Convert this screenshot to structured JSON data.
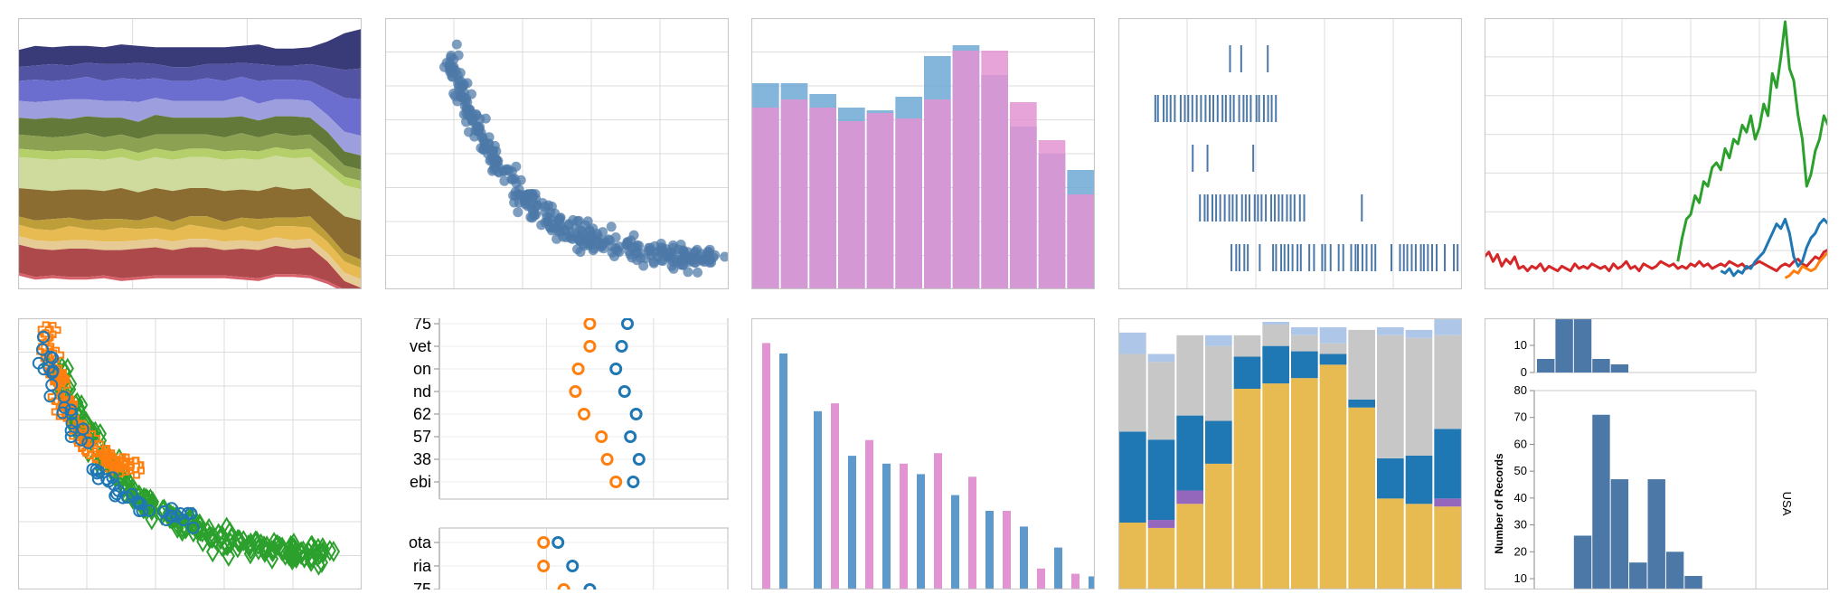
{
  "chart_data": [
    {
      "id": "streamgraph",
      "type": "area",
      "stacked": "center",
      "grid": true,
      "x": [
        0,
        1,
        2,
        3,
        4,
        5,
        6,
        7,
        8,
        9,
        10,
        11,
        12,
        13,
        14,
        15,
        16,
        17,
        18,
        19,
        20
      ],
      "series": [
        {
          "color": "#393b79",
          "values": [
            6,
            7,
            6,
            7,
            6,
            6,
            7,
            6,
            6,
            7,
            7,
            6,
            6,
            6,
            7,
            6,
            6,
            6,
            9,
            13,
            14
          ]
        },
        {
          "color": "#5254a3",
          "values": [
            5,
            5,
            6,
            5,
            5,
            6,
            5,
            6,
            5,
            5,
            5,
            5,
            6,
            5,
            6,
            5,
            5,
            6,
            8,
            10,
            11
          ]
        },
        {
          "color": "#6b6ecf",
          "values": [
            7,
            8,
            7,
            7,
            8,
            7,
            8,
            8,
            7,
            7,
            7,
            8,
            7,
            7,
            8,
            7,
            7,
            7,
            9,
            12,
            13
          ]
        },
        {
          "color": "#9c9ede",
          "values": [
            6,
            6,
            6,
            7,
            6,
            6,
            6,
            7,
            6,
            6,
            6,
            6,
            6,
            7,
            6,
            6,
            6,
            6,
            6,
            7,
            7
          ]
        },
        {
          "color": "#637939",
          "values": [
            6,
            6,
            7,
            6,
            6,
            7,
            6,
            6,
            7,
            6,
            6,
            6,
            7,
            6,
            6,
            6,
            7,
            6,
            6,
            5,
            5
          ]
        },
        {
          "color": "#8ca252",
          "values": [
            5,
            5,
            5,
            5,
            6,
            5,
            5,
            5,
            5,
            6,
            5,
            5,
            5,
            6,
            5,
            5,
            5,
            5,
            5,
            4,
            4
          ]
        },
        {
          "color": "#b5cf6b",
          "values": [
            3,
            3,
            3,
            3,
            3,
            3,
            3,
            3,
            3,
            3,
            3,
            3,
            3,
            3,
            3,
            3,
            3,
            3,
            3,
            3,
            3
          ]
        },
        {
          "color": "#cedb9c",
          "values": [
            11,
            11,
            11,
            11,
            11,
            11,
            11,
            11,
            11,
            11,
            11,
            11,
            11,
            11,
            11,
            11,
            11,
            11,
            11,
            11,
            11
          ]
        },
        {
          "color": "#8c6d31",
          "values": [
            10,
            11,
            10,
            10,
            11,
            10,
            11,
            10,
            10,
            11,
            10,
            10,
            11,
            10,
            10,
            11,
            10,
            10,
            11,
            13,
            14
          ]
        },
        {
          "color": "#bd9e39",
          "values": [
            3,
            3,
            4,
            3,
            3,
            4,
            3,
            3,
            4,
            3,
            3,
            4,
            3,
            3,
            4,
            3,
            3,
            4,
            3,
            3,
            3
          ]
        },
        {
          "color": "#e7ba52",
          "values": [
            4,
            4,
            4,
            5,
            4,
            4,
            5,
            4,
            4,
            4,
            5,
            4,
            4,
            5,
            4,
            4,
            5,
            4,
            4,
            4,
            4
          ]
        },
        {
          "color": "#e7cb94",
          "values": [
            3,
            3,
            3,
            3,
            3,
            3,
            3,
            3,
            3,
            3,
            3,
            3,
            3,
            3,
            3,
            3,
            3,
            3,
            3,
            3,
            3
          ]
        },
        {
          "color": "#ad494a",
          "values": [
            10,
            10,
            9,
            10,
            10,
            9,
            10,
            10,
            10,
            9,
            10,
            10,
            9,
            10,
            10,
            10,
            9,
            10,
            7,
            3,
            2
          ]
        },
        {
          "color": "#d6616b",
          "values": [
            1,
            1,
            1,
            1,
            1,
            1,
            1,
            1,
            1,
            1,
            1,
            1,
            1,
            1,
            1,
            1,
            1,
            1,
            1,
            1,
            1
          ]
        }
      ]
    },
    {
      "id": "scatter-single",
      "type": "scatter",
      "grid": true,
      "xlim": [
        0,
        100
      ],
      "ylim": [
        0,
        100
      ],
      "color": "#4c78a8"
    },
    {
      "id": "overlaid-histogram",
      "type": "bar",
      "grid": true,
      "ylim": [
        0,
        100
      ],
      "series": [
        {
          "color": "#6fa8d4",
          "values": [
            76,
            76,
            72,
            67,
            66,
            71,
            86,
            90,
            79,
            60,
            50,
            44
          ]
        },
        {
          "color": "#e294d2",
          "values": [
            67,
            70,
            67,
            62,
            65,
            63,
            70,
            88,
            88,
            69,
            55,
            35
          ]
        }
      ]
    },
    {
      "id": "strip-plot",
      "type": "scatter",
      "grid": true,
      "rows": 5,
      "color": "#4c78a8",
      "xlim": [
        0,
        100
      ]
    },
    {
      "id": "multi-line",
      "type": "line",
      "grid": true,
      "ylim": [
        0,
        100
      ],
      "series": [
        {
          "color": "#2ca02c",
          "values": [
            null,
            null,
            null,
            null,
            null,
            null,
            null,
            null,
            null,
            null,
            null,
            null,
            null,
            null,
            null,
            null,
            null,
            null,
            null,
            null,
            null,
            null,
            null,
            null,
            null,
            null,
            null,
            null,
            null,
            null,
            null,
            null,
            null,
            null,
            null,
            null,
            null,
            null,
            null,
            null,
            null,
            null,
            null,
            null,
            null,
            8,
            18,
            26,
            28,
            36,
            33,
            42,
            40,
            48,
            50,
            47,
            56,
            52,
            60,
            58,
            66,
            63,
            70,
            60,
            65,
            75,
            70,
            88,
            82,
            95,
            110,
            90,
            85,
            70,
            60,
            40,
            45,
            55,
            60,
            70,
            66
          ]
        },
        {
          "color": "#d62728",
          "values": [
            10,
            12,
            8,
            11,
            6,
            9,
            7,
            10,
            5,
            6,
            4,
            6,
            5,
            7,
            4,
            6,
            5,
            4,
            6,
            5,
            4,
            7,
            5,
            6,
            5,
            7,
            6,
            5,
            6,
            4,
            7,
            5,
            6,
            8,
            5,
            6,
            4,
            7,
            6,
            5,
            6,
            8,
            7,
            6,
            7,
            5,
            6,
            5,
            7,
            6,
            8,
            6,
            7,
            5,
            6,
            7,
            6,
            8,
            7,
            6,
            7,
            5,
            6,
            7,
            8,
            7,
            6,
            5,
            4,
            6,
            7,
            6,
            8,
            9,
            7,
            6,
            8,
            10,
            9,
            12,
            13
          ]
        },
        {
          "color": "#1f77b4",
          "values": [
            null,
            null,
            null,
            null,
            null,
            null,
            null,
            null,
            null,
            null,
            null,
            null,
            null,
            null,
            null,
            null,
            null,
            null,
            null,
            null,
            null,
            null,
            null,
            null,
            null,
            null,
            null,
            null,
            null,
            null,
            null,
            null,
            null,
            null,
            null,
            null,
            null,
            null,
            null,
            null,
            null,
            null,
            null,
            null,
            null,
            null,
            null,
            null,
            null,
            null,
            null,
            null,
            null,
            null,
            null,
            4,
            3,
            5,
            2,
            4,
            3,
            6,
            5,
            8,
            10,
            12,
            16,
            20,
            24,
            22,
            26,
            20,
            10,
            6,
            8,
            14,
            18,
            20,
            24,
            26,
            24
          ]
        },
        {
          "color": "#ff7f0e",
          "values": [
            null,
            null,
            null,
            null,
            null,
            null,
            null,
            null,
            null,
            null,
            null,
            null,
            null,
            null,
            null,
            null,
            null,
            null,
            null,
            null,
            null,
            null,
            null,
            null,
            null,
            null,
            null,
            null,
            null,
            null,
            null,
            null,
            null,
            null,
            null,
            null,
            null,
            null,
            null,
            null,
            null,
            null,
            null,
            null,
            null,
            null,
            null,
            null,
            null,
            null,
            null,
            null,
            null,
            null,
            null,
            null,
            null,
            null,
            null,
            null,
            null,
            null,
            null,
            null,
            null,
            null,
            null,
            null,
            null,
            null,
            1,
            2,
            4,
            3,
            6,
            5,
            4,
            5,
            8,
            10,
            12
          ]
        }
      ]
    },
    {
      "id": "scatter-shapes",
      "type": "scatter",
      "grid": true,
      "xlim": [
        0,
        100
      ],
      "ylim": [
        0,
        100
      ],
      "series": [
        {
          "color": "#1f77b4",
          "shape": "circle"
        },
        {
          "color": "#ff7f0e",
          "shape": "cross"
        },
        {
          "color": "#2ca02c",
          "shape": "diamond"
        }
      ]
    },
    {
      "id": "dot-plot",
      "type": "scatter",
      "grid": true,
      "top_labels": [
        "75",
        "vet",
        "on",
        "nd",
        "62",
        "57",
        "38",
        "ebi"
      ],
      "bottom_labels": [
        "ota",
        "ria",
        "75"
      ],
      "top_series": [
        {
          "color": "#ff7f0e",
          "values": [
            52,
            52,
            48,
            47,
            50,
            56,
            58,
            61
          ]
        },
        {
          "color": "#1f77b4",
          "values": [
            65,
            63,
            61,
            64,
            68,
            66,
            69,
            67
          ]
        }
      ],
      "bottom_series": [
        {
          "color": "#ff7f0e",
          "values": [
            36,
            36,
            43
          ]
        },
        {
          "color": "#1f77b4",
          "values": [
            41,
            46,
            52
          ]
        }
      ]
    },
    {
      "id": "grouped-bar",
      "type": "bar",
      "grid": false,
      "ylim": [
        0,
        100
      ],
      "series": [
        {
          "color": "#e294d2",
          "values": [
            94,
            null,
            71,
            57,
            48,
            52,
            43,
            30,
            8,
            6
          ]
        },
        {
          "color": "#5e99cc",
          "values": [
            90,
            68,
            51,
            48,
            44,
            36,
            30,
            24,
            16,
            5
          ]
        }
      ]
    },
    {
      "id": "stacked-bar",
      "type": "bar",
      "stacked": true,
      "grid": false,
      "ylim": [
        0,
        100
      ],
      "colors": [
        "#aec7e8",
        "#c7c7c7",
        "#1f77b4",
        "#9467bd",
        "#e7ba52"
      ],
      "series": [
        {
          "color": "#e7ba52",
          "values": [
            25,
            23,
            32,
            47,
            75,
            77,
            79,
            84,
            68,
            34,
            32,
            31
          ]
        },
        {
          "color": "#9467bd",
          "values": [
            0,
            3,
            5,
            0,
            0,
            0,
            0,
            0,
            0,
            0,
            0,
            3
          ]
        },
        {
          "color": "#1f77b4",
          "values": [
            34,
            30,
            28,
            16,
            12,
            14,
            10,
            4,
            3,
            15,
            18,
            26
          ]
        },
        {
          "color": "#c7c7c7",
          "values": [
            29,
            29,
            30,
            28,
            8,
            8,
            6,
            4,
            26,
            46,
            44,
            35
          ]
        },
        {
          "color": "#aec7e8",
          "values": [
            8,
            3,
            0,
            4,
            0,
            1,
            3,
            6,
            0,
            3,
            3,
            6
          ]
        }
      ]
    },
    {
      "id": "faceted-histogram",
      "type": "bar",
      "grid": false,
      "color": "#4c78a8",
      "ylabel": "Number of Records",
      "facet_label": "USA",
      "top": {
        "ylim": [
          0,
          20
        ],
        "yticks": [
          0,
          10
        ],
        "values": [
          5,
          22,
          22,
          5,
          3,
          0,
          0,
          0,
          0,
          0,
          0,
          0
        ]
      },
      "bottom": {
        "ylim": [
          10,
          80
        ],
        "yticks": [
          10,
          20,
          30,
          40,
          50,
          60,
          70,
          80
        ],
        "values": [
          0,
          0,
          26,
          71,
          47,
          16,
          47,
          20,
          11,
          0,
          0,
          0
        ]
      }
    }
  ]
}
